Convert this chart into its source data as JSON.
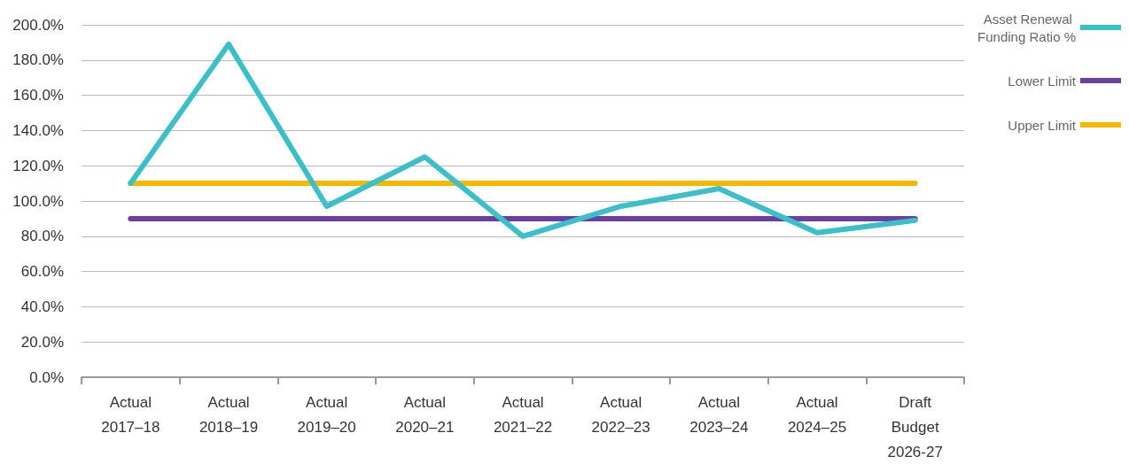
{
  "chart_data": {
    "type": "line",
    "categories": [
      "Actual\n2017–18",
      "Actual\n2018–19",
      "Actual\n2019–20",
      "Actual\n2020–21",
      "Actual\n2021–22",
      "Actual\n2022–23",
      "Actual\n2023–24",
      "Actual\n2024–25",
      "Draft\nBudget\n2026-27"
    ],
    "series": [
      {
        "name": "Asset Renewal Funding Ratio %",
        "color": "#3bbfc8",
        "values": [
          110,
          189,
          97,
          125,
          80,
          97,
          107,
          82,
          89
        ]
      },
      {
        "name": "Lower Limit",
        "color": "#6a3fa0",
        "values": [
          90,
          90,
          90,
          90,
          90,
          90,
          90,
          90,
          90
        ]
      },
      {
        "name": "Upper Limit",
        "color": "#f5b800",
        "values": [
          110,
          110,
          110,
          110,
          110,
          110,
          110,
          110,
          110
        ]
      }
    ],
    "ylim": [
      0,
      200
    ],
    "yticks": [
      {
        "value": 0,
        "label": "0.0%"
      },
      {
        "value": 20,
        "label": "20.0%"
      },
      {
        "value": 40,
        "label": "40.0%"
      },
      {
        "value": 60,
        "label": "60.0%"
      },
      {
        "value": 80,
        "label": "80.0%"
      },
      {
        "value": 100,
        "label": "100.0%"
      },
      {
        "value": 120,
        "label": "120.0%"
      },
      {
        "value": 140,
        "label": "140.0%"
      },
      {
        "value": 160,
        "label": "160.0%"
      },
      {
        "value": 180,
        "label": "180.0%"
      },
      {
        "value": 200,
        "label": "200.0%"
      }
    ],
    "grid": "y",
    "legend": "right",
    "marker": "none",
    "line_style": "solid"
  }
}
